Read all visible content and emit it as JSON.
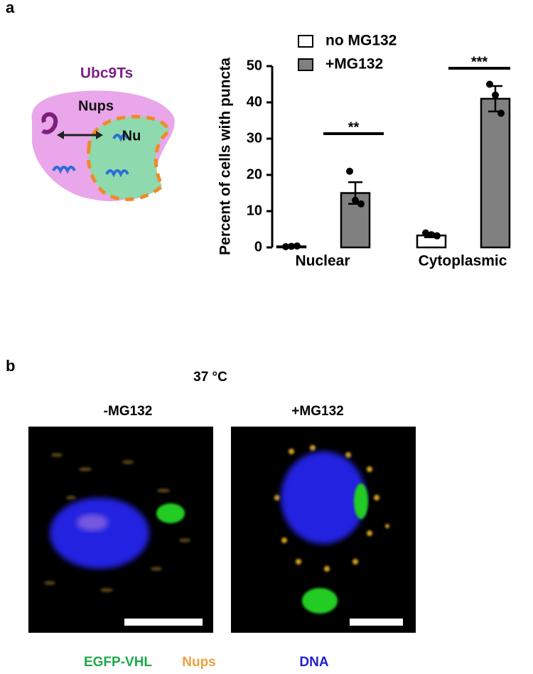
{
  "panel_labels": [
    "a",
    "b"
  ],
  "diagram": {
    "title": "Ubc9Ts",
    "nups": "Nups",
    "nucleus": "Nu"
  },
  "chart_data": {
    "type": "bar",
    "y_label": "Percent of cells with puncta",
    "categories": [
      "Nuclear",
      "Cytoplasmic"
    ],
    "series": [
      {
        "name": "no MG132",
        "color": "#ffffff",
        "values": [
          0.3,
          3.3
        ],
        "errors": [
          0.2,
          0.5
        ],
        "points": [
          [
            0.2,
            0.3,
            0.4
          ],
          [
            4,
            3.5,
            3.2
          ]
        ]
      },
      {
        "name": "+MG132",
        "color": "#808080",
        "values": [
          15,
          41
        ],
        "errors": [
          3,
          3.5
        ],
        "points": [
          [
            21,
            13,
            12
          ],
          [
            45,
            42,
            37
          ]
        ]
      }
    ],
    "annotations": [
      "**",
      "***"
    ],
    "ylim": [
      0,
      50
    ],
    "yticks": [
      0,
      10,
      20,
      30,
      40,
      50
    ]
  },
  "images": {
    "condition": "37 °C",
    "panels": [
      "-MG132",
      "+MG132"
    ],
    "channels": [
      "EGFP-VHL",
      "Nups",
      "DNA"
    ]
  }
}
